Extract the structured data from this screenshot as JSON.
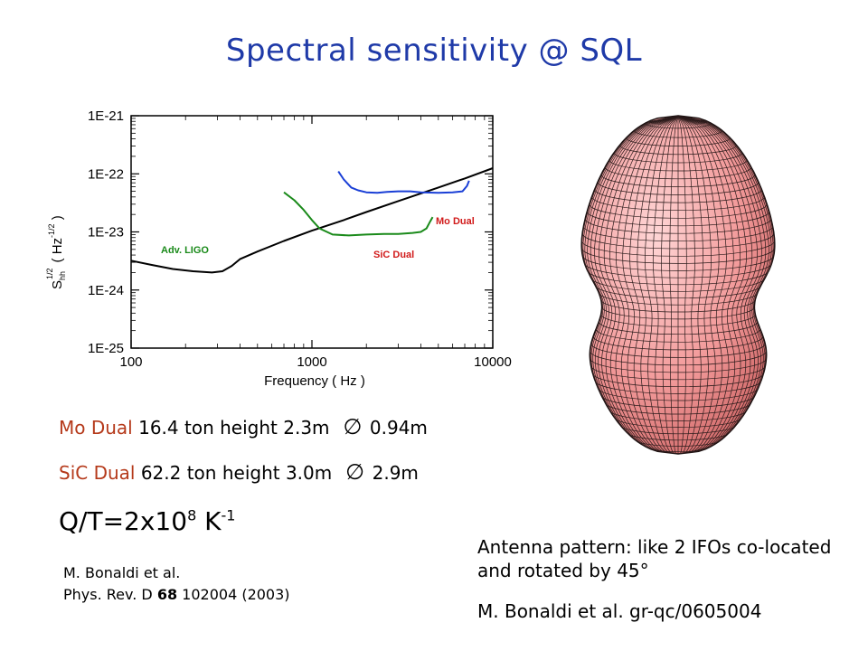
{
  "slide": {
    "title": "Spectral sensitivity @ SQL",
    "specs": [
      {
        "name": "Mo Dual",
        "mass": "16.4 ton",
        "height": "height 2.3m",
        "diameter_symbol": "∅",
        "diameter": "0.94m"
      },
      {
        "name": "SiC Dual",
        "mass": "62.2 ton",
        "height": "height 3.0m",
        "diameter_symbol": "∅",
        "diameter": "2.9m"
      }
    ],
    "qt": {
      "prefix": "Q/T=2x10",
      "exp1": "8",
      "mid": " K",
      "exp2": "-1"
    },
    "ref1": {
      "line1": "M. Bonaldi et al.",
      "journal": "Phys. Rev. D ",
      "volume": "68",
      "rest": " 102004 (2003)"
    },
    "antenna_text": "Antenna pattern: like 2 IFOs co-located and rotated by 45°",
    "ref2": "M. Bonaldi et al. gr-qc/0605004"
  },
  "chart_data": {
    "type": "line",
    "title": "",
    "xlabel": "Frequency ( Hz )",
    "ylabel_main": "S",
    "ylabel_sub": "hh",
    "ylabel_sup": "1/2",
    "ylabel_unit": "( Hz",
    "ylabel_unit_sup": "-1/2",
    "ylabel_close": " )",
    "x_scale": "log",
    "y_scale": "log",
    "xlim": [
      100,
      10000
    ],
    "ylim": [
      1e-25,
      1e-21
    ],
    "x_ticks": [
      100,
      1000,
      10000
    ],
    "x_tick_labels": [
      "100",
      "1000",
      "10000"
    ],
    "y_ticks": [
      1e-21,
      1e-22,
      1e-23,
      1e-24,
      1e-25
    ],
    "y_tick_labels": [
      "1E-21",
      "1E-22",
      "1E-23",
      "1E-24",
      "1E-25"
    ],
    "grid": false,
    "series": [
      {
        "name": "Adv. LIGO",
        "color": "#000000",
        "x": [
          100,
          130,
          170,
          220,
          280,
          320,
          360,
          400,
          500,
          700,
          1000,
          1500,
          2000,
          3000,
          5000,
          7000,
          10000
        ],
        "y": [
          3.2e-24,
          2.7e-24,
          2.3e-24,
          2.1e-24,
          2e-24,
          2.1e-24,
          2.6e-24,
          3.4e-24,
          4.6e-24,
          7e-24,
          1.05e-23,
          1.6e-23,
          2.2e-23,
          3.4e-23,
          5.8e-23,
          8.3e-23,
          1.25e-22
        ]
      },
      {
        "name": "SiC Dual",
        "color": "#1a8a1a",
        "x": [
          700,
          800,
          900,
          1000,
          1100,
          1300,
          1600,
          2000,
          2500,
          3000,
          3600,
          4000,
          4300,
          4500,
          4650
        ],
        "y": [
          4.8e-23,
          3.5e-23,
          2.4e-23,
          1.6e-23,
          1.15e-23,
          9e-24,
          8.7e-24,
          9e-24,
          9.2e-24,
          9.2e-24,
          9.6e-24,
          1e-23,
          1.15e-23,
          1.5e-23,
          1.8e-23
        ]
      },
      {
        "name": "Mo Dual",
        "color": "#1a3fd6",
        "x": [
          1400,
          1500,
          1650,
          1800,
          2000,
          2300,
          2600,
          3000,
          3500,
          4000,
          5000,
          6000,
          6800,
          7200,
          7400
        ],
        "y": [
          1.1e-22,
          8e-23,
          5.8e-23,
          5.2e-23,
          4.8e-23,
          4.7e-23,
          4.9e-23,
          5e-23,
          5e-23,
          4.8e-23,
          4.7e-23,
          4.8e-23,
          5e-23,
          6.2e-23,
          7.6e-23
        ]
      }
    ],
    "series_labels": [
      "Adv. LIGO",
      "SiC Dual",
      "Mo Dual"
    ]
  },
  "colors": {
    "title": "#1f3aa8",
    "spec_name": "#b5391a",
    "pattern_fill": "#f08f8f",
    "pattern_mesh": "#2a1a1a"
  }
}
